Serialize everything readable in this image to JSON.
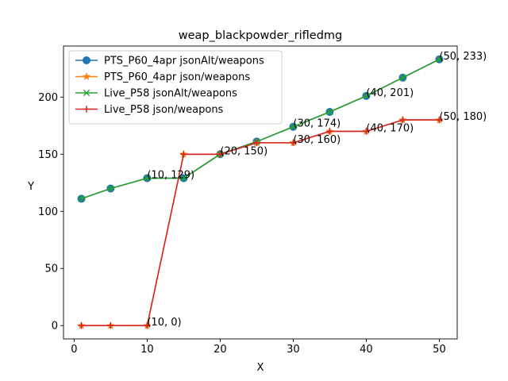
{
  "chart_data": {
    "type": "line",
    "title": "weap_blackpowder_rifledmg",
    "xlabel": "X",
    "ylabel": "Y",
    "xlim": [
      -1.45,
      52.45
    ],
    "ylim": [
      -11.65,
      244.65
    ],
    "xticks": [
      0,
      10,
      20,
      30,
      40,
      50
    ],
    "yticks": [
      0,
      50,
      100,
      150,
      200
    ],
    "legend_position": "upper-left",
    "series": [
      {
        "name": "PTS_P60_4apr jsonAlt/weapons",
        "color": "#1f77b4",
        "marker": "circle",
        "x": [
          1,
          5,
          10,
          15,
          20,
          25,
          30,
          35,
          40,
          45,
          50
        ],
        "y": [
          111,
          120,
          129,
          129,
          150,
          161,
          174,
          187,
          201,
          217,
          233
        ]
      },
      {
        "name": "PTS_P60_4apr json/weapons",
        "color": "#ff7f0e",
        "marker": "star",
        "x": [
          1,
          5,
          10,
          15,
          20,
          25,
          30,
          35,
          40,
          45,
          50
        ],
        "y": [
          0,
          0,
          0,
          150,
          150,
          160,
          160,
          170,
          170,
          180,
          180
        ]
      },
      {
        "name": "Live_P58 jsonAlt/weapons",
        "color": "#2ca02c",
        "marker": "x",
        "x": [
          1,
          5,
          10,
          15,
          20,
          25,
          30,
          35,
          40,
          45,
          50
        ],
        "y": [
          111,
          120,
          129,
          129,
          150,
          161,
          174,
          187,
          201,
          217,
          233
        ]
      },
      {
        "name": "Live_P58 json/weapons",
        "color": "#d62728",
        "marker": "plus",
        "x": [
          1,
          5,
          10,
          15,
          20,
          25,
          30,
          35,
          40,
          45,
          50
        ],
        "y": [
          0,
          0,
          0,
          150,
          150,
          160,
          160,
          170,
          170,
          180,
          180
        ]
      }
    ],
    "annotations": [
      {
        "x": 10,
        "y": 0,
        "text": "(10, 0)"
      },
      {
        "x": 10,
        "y": 129,
        "text": "(10, 129)"
      },
      {
        "x": 20,
        "y": 150,
        "text": "(20, 150)"
      },
      {
        "x": 30,
        "y": 160,
        "text": "(30, 160)"
      },
      {
        "x": 30,
        "y": 174,
        "text": "(30, 174)"
      },
      {
        "x": 40,
        "y": 170,
        "text": "(40, 170)"
      },
      {
        "x": 40,
        "y": 201,
        "text": "(40, 201)"
      },
      {
        "x": 50,
        "y": 180,
        "text": "(50, 180)"
      },
      {
        "x": 50,
        "y": 233,
        "text": "(50, 233)"
      }
    ]
  }
}
